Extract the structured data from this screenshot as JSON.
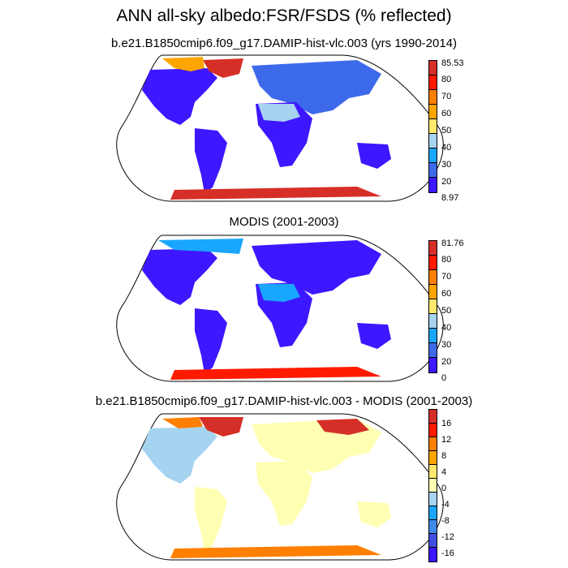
{
  "title": "ANN all-sky albedo:FSR/FSDS (% reflected)",
  "panels": [
    {
      "subtitle": "b.e21.B1850cmip6.f09_g17.DAMIP-hist-vlc.003 (yrs 1990-2014)",
      "colorbar": {
        "labels": [
          "85.53",
          "80",
          "70",
          "60",
          "50",
          "40",
          "30",
          "20",
          "8.97"
        ],
        "colors": [
          "#d62f27",
          "#ff1a00",
          "#ff7f00",
          "#ffa500",
          "#ffe86b",
          "#a6d3f0",
          "#19a6ff",
          "#3d6aeb",
          "#3d17ff"
        ]
      }
    },
    {
      "subtitle": "MODIS (2001-2003)",
      "colorbar": {
        "labels": [
          "81.76",
          "80",
          "70",
          "60",
          "50",
          "40",
          "30",
          "20",
          "0"
        ],
        "colors": [
          "#d62f27",
          "#ff1a00",
          "#ff7f00",
          "#ffa500",
          "#ffe86b",
          "#a6d3f0",
          "#19a6ff",
          "#3d6aeb",
          "#3d17ff"
        ]
      }
    },
    {
      "subtitle": "b.e21.B1850cmip6.f09_g17.DAMIP-hist-vlc.003 - MODIS (2001-2003)",
      "colorbar": {
        "labels": [
          "16",
          "12",
          "8",
          "4",
          "0",
          "-4",
          "-8",
          "-12",
          "-16"
        ],
        "colors": [
          "#d62f27",
          "#ff1a00",
          "#ff7f00",
          "#ffa500",
          "#ffe86b",
          "#ffffb3",
          "#a6d3f0",
          "#19a6ff",
          "#3d8aeb",
          "#3d4fe0",
          "#3d17ff"
        ]
      }
    }
  ]
}
